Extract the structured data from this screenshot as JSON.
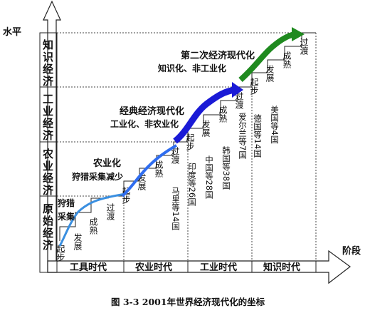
{
  "axes": {
    "y_label": "水平",
    "x_label": "阶段",
    "levels": [
      "原始经济",
      "农业经济",
      "工业经济",
      "知识经济"
    ],
    "eras": [
      "工具时代",
      "农业时代",
      "工业时代",
      "知识时代"
    ]
  },
  "stages": {
    "primitive": {
      "start": "起步",
      "develop": "发展",
      "mature": "成熟",
      "transition": "过渡"
    },
    "agriculture": {
      "start": "起步",
      "develop": "发展",
      "mature": "成熟",
      "transition": "过渡"
    },
    "industry": {
      "start": "起步",
      "develop": "发展",
      "mature": "成熟",
      "transition": "过渡"
    },
    "knowledge": {
      "start": "起步",
      "develop": "发展",
      "mature": "成熟",
      "transition": "过渡"
    }
  },
  "curves": {
    "primitive": {
      "label_1": "狩猎",
      "label_2": "采集",
      "color": "#3a8fe0"
    },
    "agriculture": {
      "label_1": "农业化",
      "label_2": "狩猎采集减少",
      "color": "#2f6df0"
    },
    "classic": {
      "label_1": "经典经济现代化",
      "label_2": "工业化、非农业化",
      "color": "#1a1ad6"
    },
    "second": {
      "label_1": "第二次经济现代化",
      "label_2": "知识化、非工业化",
      "color": "#1f8a1f"
    }
  },
  "country_groups": [
    "马里等14国",
    "印度等26国",
    "中国等28国",
    "韩国等38国",
    "爱尔兰等7国",
    "德国等14国",
    "美国等4国"
  ],
  "caption": "图 3-3    2001年世界经济现代化的坐标"
}
